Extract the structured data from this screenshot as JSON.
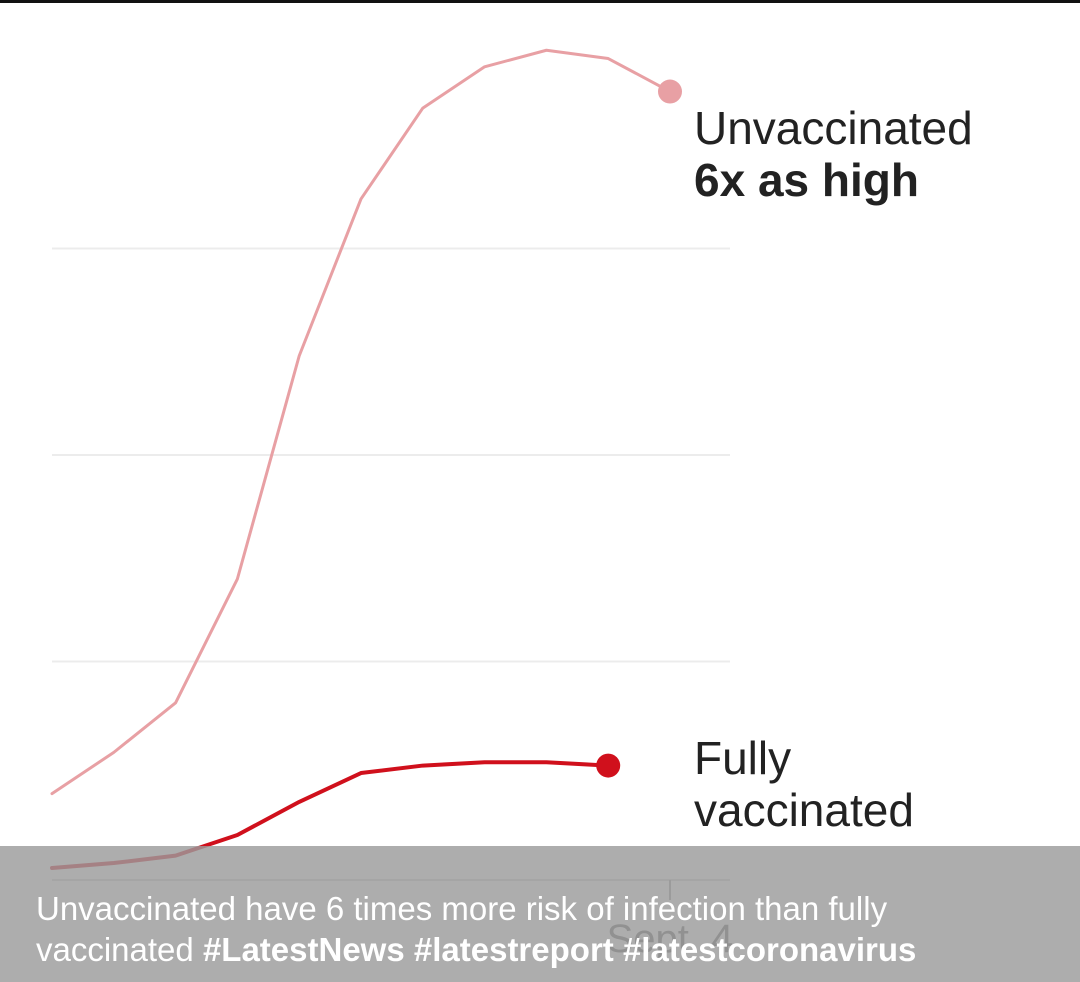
{
  "chart_data": {
    "type": "line",
    "x": [
      1,
      2,
      3,
      4,
      5,
      6,
      7,
      8,
      9,
      10,
      11,
      12
    ],
    "x_tick_labels": [
      "Sept. 4"
    ],
    "ylim": [
      0,
      100
    ],
    "grid": true,
    "series": [
      {
        "name": "Unvaccinated",
        "annotation": "6x as high",
        "color": "#e8a0a4",
        "values": [
          9,
          14,
          20,
          35,
          62,
          81,
          92,
          97,
          99,
          98,
          94,
          null
        ]
      },
      {
        "name_lines": [
          "Fully",
          "vaccinated"
        ],
        "color": "#d0101c",
        "values": [
          0,
          0.6,
          1.5,
          4,
          8,
          11.5,
          12.4,
          12.8,
          12.8,
          12.4,
          null,
          null
        ]
      }
    ]
  },
  "caption": {
    "text": "Unvaccinated have 6 times more risk of infection than fully vaccinated",
    "tags": [
      "#LatestNews",
      "#latestreport",
      "#latestcoronavirus"
    ]
  }
}
